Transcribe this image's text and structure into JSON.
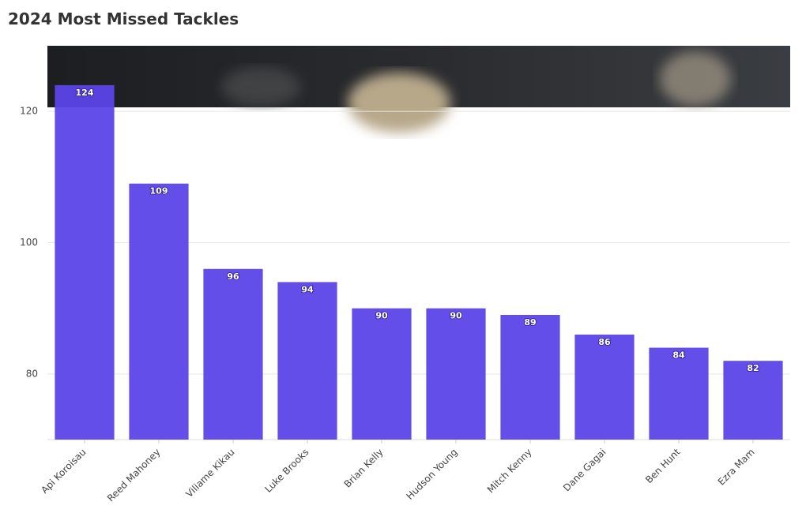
{
  "chart_data": {
    "type": "bar",
    "title": "2024 Most Missed Tackles",
    "categories": [
      "Api Koroisau",
      "Reed Mahoney",
      "Viliame Kikau",
      "Luke Brooks",
      "Brian Kelly",
      "Hudson Young",
      "Mitch Kenny",
      "Dane Gagai",
      "Ben Hunt",
      "Ezra Mam"
    ],
    "values": [
      124,
      109,
      96,
      94,
      90,
      90,
      89,
      86,
      84,
      82
    ],
    "color": "#5b45e8",
    "ylim": [
      70,
      130
    ],
    "yticks": [
      80,
      100,
      120
    ],
    "grid": true
  }
}
